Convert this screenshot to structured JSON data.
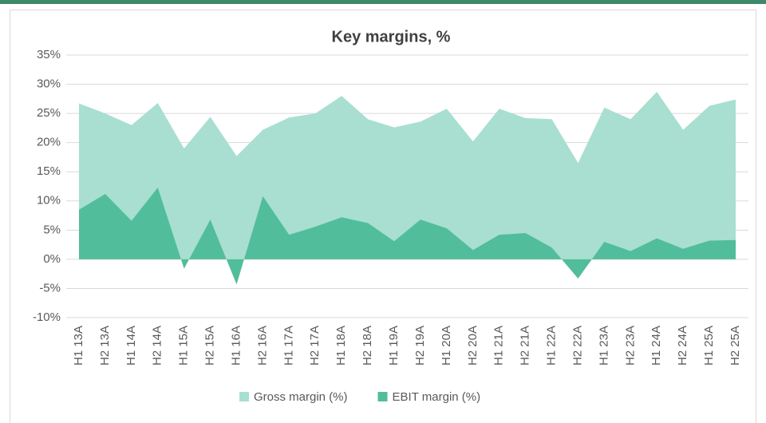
{
  "chart_data": {
    "type": "area",
    "title": "Key margins, %",
    "categories": [
      "H1 13A",
      "H2 13A",
      "H1 14A",
      "H2 14A",
      "H1 15A",
      "H2 15A",
      "H1 16A",
      "H2 16A",
      "H1 17A",
      "H2 17A",
      "H1 18A",
      "H2 18A",
      "H1 19A",
      "H2 19A",
      "H1 20A",
      "H2 20A",
      "H1 21A",
      "H2 21A",
      "H1 22A",
      "H2 22A",
      "H1 23A",
      "H2 23A",
      "H1 24A",
      "H2 24A",
      "H1 25A",
      "H2 25A"
    ],
    "series": [
      {
        "name": "Gross margin (%)",
        "color": "#a8dfd0",
        "values": [
          26.7,
          25,
          23,
          26.8,
          19,
          24.4,
          17.7,
          22.2,
          24.3,
          25,
          28,
          24,
          22.6,
          23.6,
          25.8,
          20.2,
          25.8,
          24.2,
          24,
          16.5,
          26,
          24,
          28.7,
          22.2,
          26.3,
          27.4
        ]
      },
      {
        "name": "EBIT margin (%)",
        "color": "#52bd9a",
        "values": [
          8.5,
          11.2,
          6.6,
          12.3,
          -1.6,
          6.8,
          -4.3,
          10.8,
          4.2,
          5.6,
          7.2,
          6.2,
          3.1,
          6.8,
          5.3,
          1.6,
          4.2,
          4.5,
          2.0,
          -3.3,
          3.0,
          1.4,
          3.6,
          1.8,
          3.2,
          3.3
        ]
      }
    ],
    "ylim": [
      -10,
      35
    ],
    "yticks": [
      {
        "value": -10,
        "label": "-10%"
      },
      {
        "value": -5,
        "label": "-5%"
      },
      {
        "value": 0,
        "label": "0%"
      },
      {
        "value": 5,
        "label": "5%"
      },
      {
        "value": 10,
        "label": "10%"
      },
      {
        "value": 15,
        "label": "15%"
      },
      {
        "value": 20,
        "label": "20%"
      },
      {
        "value": 25,
        "label": "25%"
      },
      {
        "value": 30,
        "label": "30%"
      },
      {
        "value": 35,
        "label": "35%"
      }
    ],
    "grid": true,
    "legend": "bottom"
  }
}
